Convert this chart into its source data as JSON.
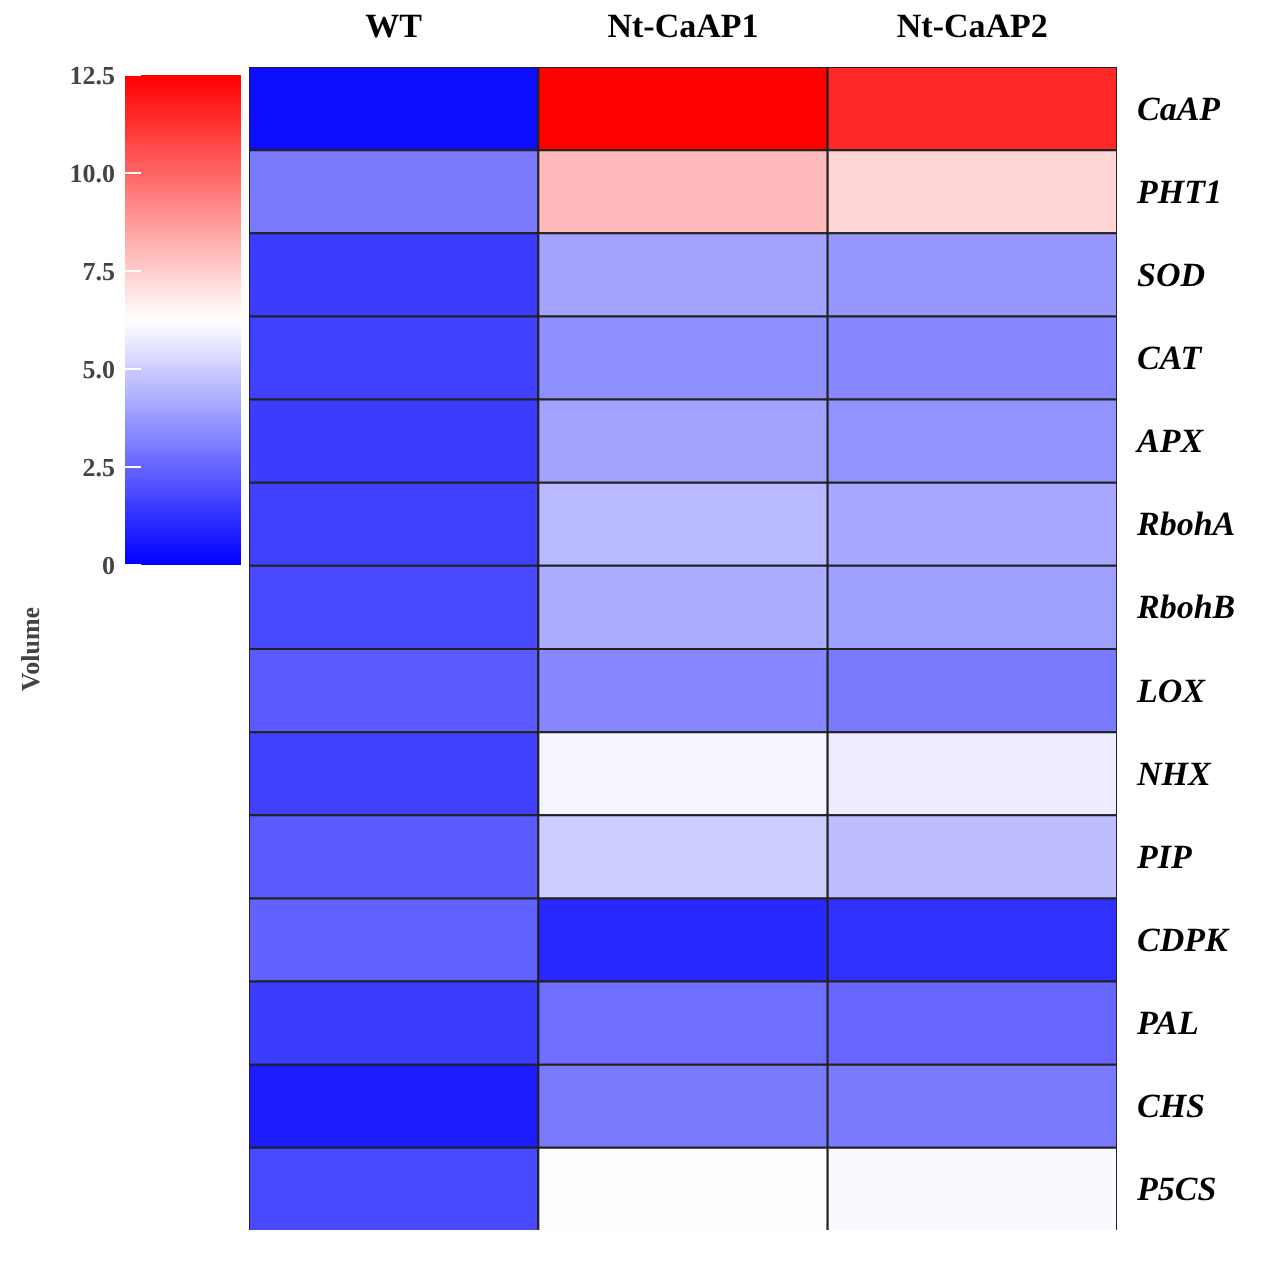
{
  "chart_data": {
    "type": "heatmap",
    "clabel": "Volume",
    "categories": [
      "WT",
      "Nt-CaAP1",
      "Nt-CaAP2"
    ],
    "y_categories": [
      "CaAP",
      "PHT1",
      "SOD",
      "CAT",
      "APX",
      "RbohA",
      "RbohB",
      "LOX",
      "NHX",
      "PIP",
      "CDPK",
      "PAL",
      "CHS",
      "P5CS"
    ],
    "cells": [
      [
        0.3,
        12.5,
        11.5
      ],
      [
        3.0,
        8.0,
        7.3
      ],
      [
        1.5,
        4.0,
        3.7
      ],
      [
        1.6,
        3.5,
        3.3
      ],
      [
        1.5,
        4.0,
        3.6
      ],
      [
        1.6,
        4.5,
        4.1
      ],
      [
        1.8,
        4.2,
        3.9
      ],
      [
        2.2,
        3.3,
        3.0
      ],
      [
        1.6,
        6.0,
        5.8
      ],
      [
        2.2,
        5.0,
        4.6
      ],
      [
        2.4,
        1.0,
        1.2
      ],
      [
        1.5,
        2.7,
        2.5
      ],
      [
        0.7,
        3.0,
        3.0
      ],
      [
        1.8,
        6.3,
        6.1
      ]
    ],
    "clim": [
      0,
      12.5
    ],
    "cticks": [
      0,
      {
        "value": 2.5,
        "label": "2.5"
      },
      {
        "value": 5,
        "label": "5.0"
      },
      {
        "value": 7.5,
        "label": "7.5"
      },
      {
        "value": 10,
        "label": "10.0"
      },
      12.5
    ]
  }
}
